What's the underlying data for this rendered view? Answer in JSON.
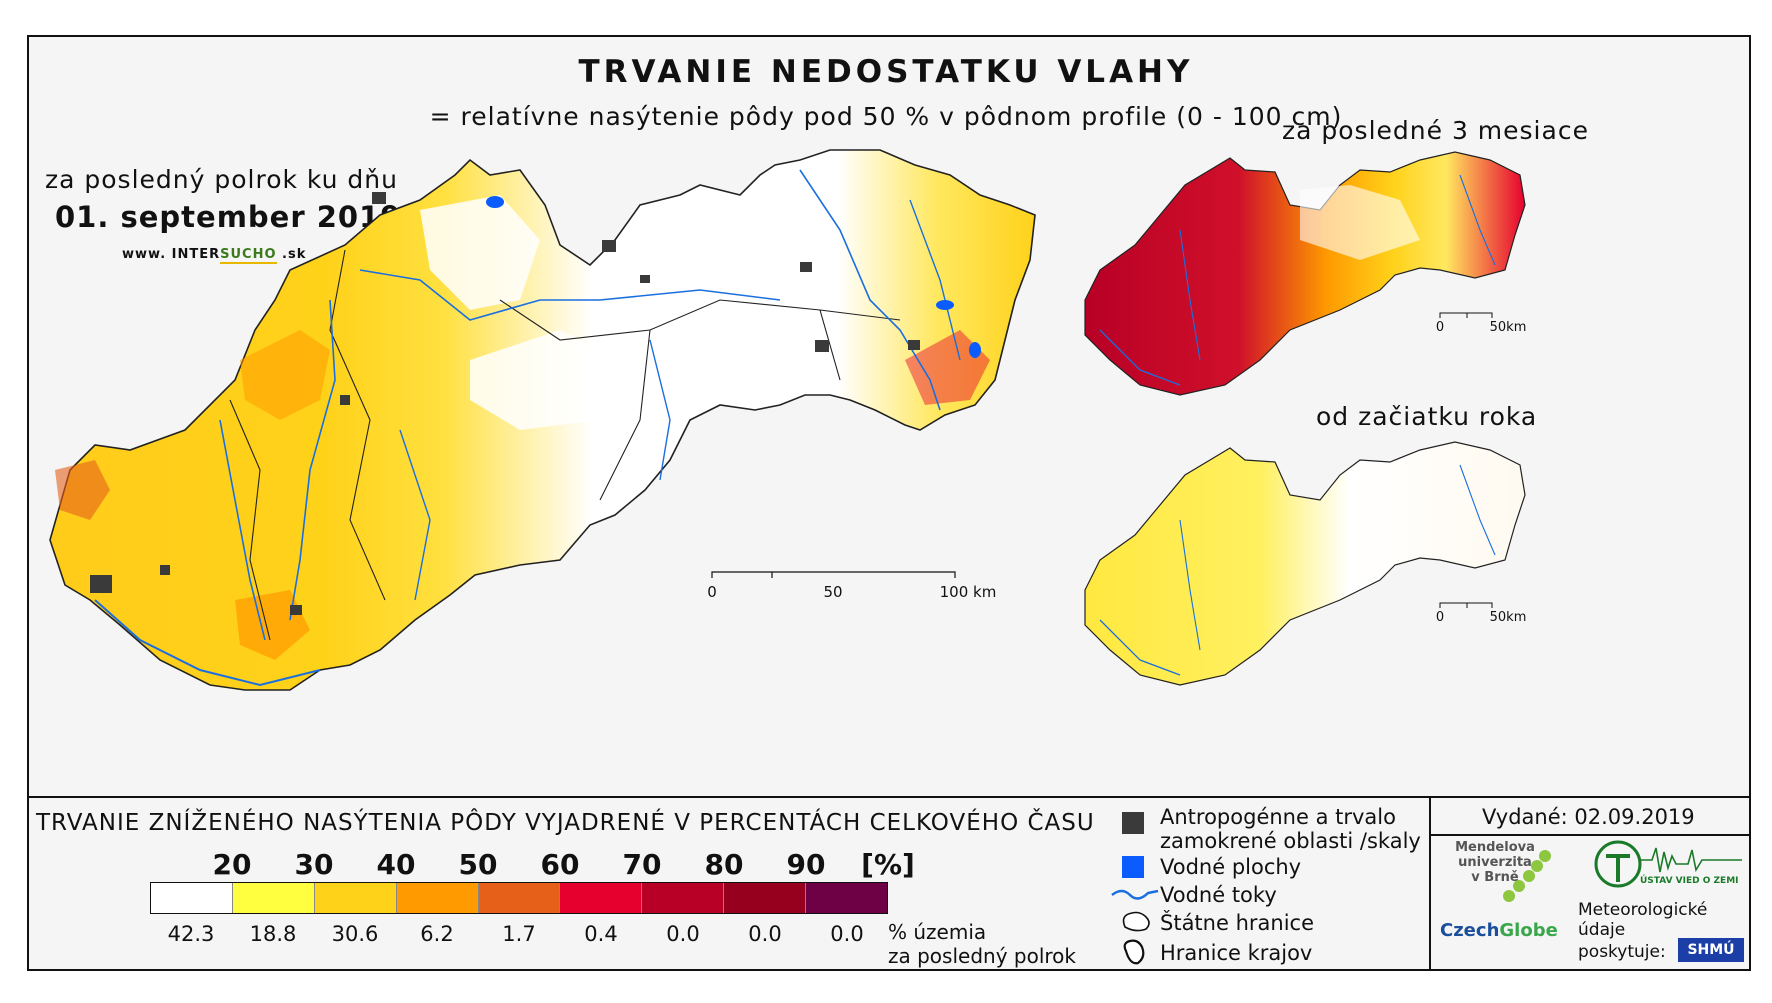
{
  "header": {
    "title": "TRVANIE NEDOSTATKU VLAHY",
    "subtitle": "= relatívne nasýtenie pôdy pod 50 % v pôdnom profile (0 - 100 cm)"
  },
  "main_map": {
    "period_label": "za posledný polrok ku dňu",
    "date": "01. september 2019",
    "website_prefix": "www. INTER",
    "website_accent": "SUCHO",
    "website_suffix": " .sk",
    "scale": {
      "start": "0",
      "mid": "50",
      "end": "100 km"
    }
  },
  "insets": {
    "last_3_months": {
      "label": "za posledné 3 mesiace",
      "scale_start": "0",
      "scale_end": "50km"
    },
    "since_year_start": {
      "label": "od začiatku roka",
      "scale_start": "0",
      "scale_end": "50km"
    }
  },
  "legend": {
    "title": "TRVANIE ZNÍŽENÉHO NASÝTENIA PÔDY VYJADRENÉ V PERCENTÁCH CELKOVÉHO ČASU",
    "thresholds": [
      "20",
      "30",
      "40",
      "50",
      "60",
      "70",
      "80",
      "90"
    ],
    "unit": "[%]",
    "colors": [
      "#ffffff",
      "#ffff40",
      "#ffd21a",
      "#ff9a00",
      "#e6601a",
      "#e6002e",
      "#b80026",
      "#96001e",
      "#6e0046"
    ],
    "percent_of_area": [
      "42.3",
      "18.8",
      "30.6",
      "6.2",
      "1.7",
      "0.4",
      "0.0",
      "0.0",
      "0.0"
    ],
    "percent_note_line1": "% územia",
    "percent_note_line2": "za posledný polrok"
  },
  "map_key": {
    "anthropogenic_line1": "Antropogénne a trvalo",
    "anthropogenic_line2": "zamokrené oblasti /skaly",
    "water_bodies": "Vodné plochy",
    "rivers": "Vodné toky",
    "state_border": "Štátne hranice",
    "region_border": "Hranice krajov",
    "colors": {
      "anthropogenic": "#3a3a3a",
      "water": "#0a5cff",
      "river": "#1a6fe0"
    }
  },
  "footer": {
    "issued": "Vydané: 02.09.2019",
    "mendel": "Mendelova\nuniverzita\nv Brně",
    "czechglobe_a": "Czech",
    "czechglobe_b": "Globe",
    "uvz": "ÚSTAV VIED O ZEMI",
    "meteo_line1": "Meteorologické",
    "meteo_line2": "údaje",
    "meteo_line3": "poskytuje:",
    "shmu": "SHMÚ"
  }
}
